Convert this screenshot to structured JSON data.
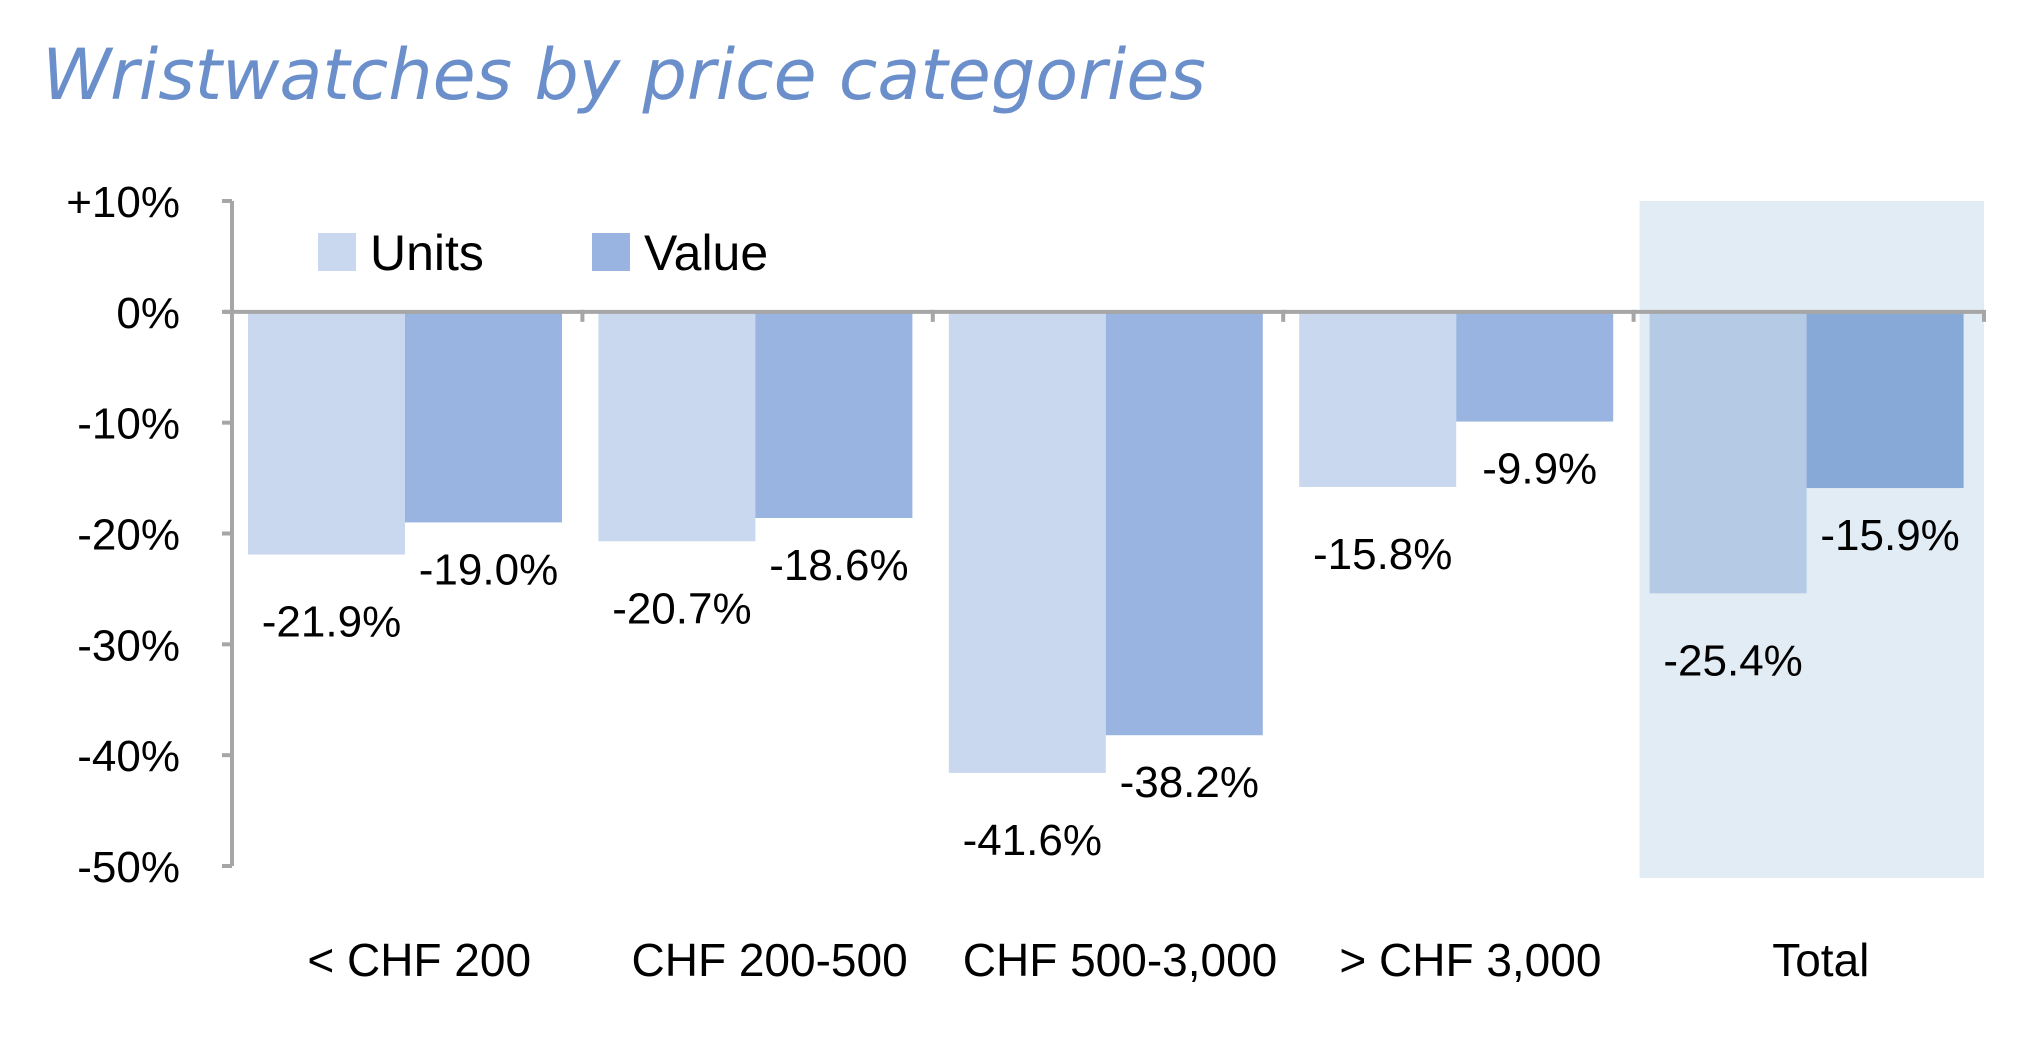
{
  "chart_data": {
    "type": "bar",
    "title": "Wristwatches by price categories",
    "xlabel": "",
    "ylabel": "",
    "categories": [
      "< CHF 200",
      "CHF 200-500",
      "CHF 500-3,000",
      "> CHF 3,000",
      "Total"
    ],
    "series": [
      {
        "name": "Units",
        "values": [
          -21.9,
          -20.7,
          -41.6,
          -15.8,
          -25.4
        ],
        "labels": [
          "-21.9%",
          "-20.7%",
          "-41.6%",
          "-15.8%",
          "-25.4%"
        ]
      },
      {
        "name": "Value",
        "values": [
          -19.0,
          -18.6,
          -38.2,
          -9.9,
          -15.9
        ],
        "labels": [
          "-19.0%",
          "-18.6%",
          "-38.2%",
          "-9.9%",
          "-15.9%"
        ]
      }
    ],
    "ylim": [
      -50,
      10
    ],
    "yticks": [
      10,
      0,
      -10,
      -20,
      -30,
      -40,
      -50
    ],
    "ytick_labels": [
      "+10%",
      "0%",
      "-10%",
      "-20%",
      "-30%",
      "-40%",
      "-50%"
    ],
    "grid": false,
    "legend_position": "top-left",
    "highlighted_category": "Total",
    "colors": {
      "title": "#6a8fca",
      "units": "#c9d8ee",
      "value": "#99b4e0",
      "units_highlight": "#b5cae5",
      "value_highlight": "#86a9d7",
      "highlight_background": "#e2ecf4",
      "axis": "#a6a6a6"
    }
  }
}
